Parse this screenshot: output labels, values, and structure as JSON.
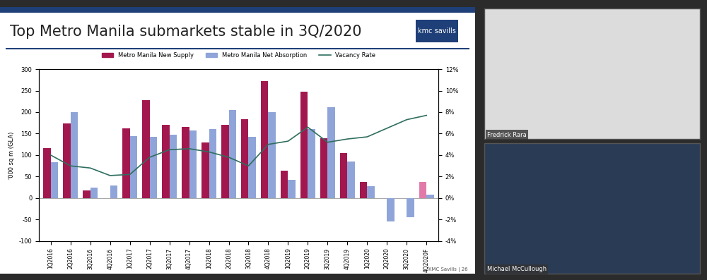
{
  "chart_data": {
    "type": "bar",
    "title": "Top Metro Manila submarkets stable in 3Q/2020",
    "y_label": "'000 sq m (GLA)",
    "categories": [
      "1Q2016",
      "2Q2016",
      "3Q2016",
      "4Q2016",
      "1Q2017",
      "2Q2017",
      "3Q2017",
      "4Q2017",
      "1Q2018",
      "2Q2018",
      "3Q2018",
      "4Q2018",
      "1Q2019",
      "2Q2019",
      "3Q2019",
      "4Q2019",
      "1Q2020",
      "2Q2020",
      "3Q2020",
      "4Q2020F"
    ],
    "series": [
      {
        "name": "Metro Manila New Supply",
        "type": "bar",
        "color": "#a3174f",
        "colors": [
          "#a3174f",
          "#a3174f",
          "#a3174f",
          "#a3174f",
          "#a3174f",
          "#a3174f",
          "#a3174f",
          "#a3174f",
          "#a3174f",
          "#a3174f",
          "#a3174f",
          "#a3174f",
          "#a3174f",
          "#a3174f",
          "#a3174f",
          "#a3174f",
          "#a3174f",
          "#a3174f",
          "#a3174f",
          "#e27aa9"
        ],
        "values": [
          116,
          174,
          18,
          0,
          162,
          228,
          170,
          165,
          130,
          170,
          183,
          272,
          63,
          248,
          140,
          105,
          37,
          0,
          0,
          37
        ]
      },
      {
        "name": "Metro Manila Net Absorption",
        "type": "bar",
        "color": "#8fa4d8",
        "values": [
          84,
          200,
          25,
          30,
          145,
          143,
          147,
          158,
          160,
          205,
          143,
          200,
          43,
          160,
          212,
          85,
          28,
          -55,
          -45,
          8
        ]
      },
      {
        "name": "Vacancy Rate",
        "type": "line",
        "axis": "y2",
        "color": "#2e6e5e",
        "values": [
          4.0,
          3.0,
          2.8,
          2.1,
          2.2,
          3.8,
          4.5,
          4.6,
          4.3,
          3.8,
          3.0,
          5.0,
          5.3,
          6.6,
          5.2,
          5.5,
          5.7,
          6.5,
          7.3,
          7.7
        ]
      }
    ],
    "ylim": [
      -100,
      300
    ],
    "yticks": [
      -100,
      -50,
      0,
      50,
      100,
      150,
      200,
      250,
      300
    ],
    "y2lim": [
      -4,
      12
    ],
    "y2ticks": [
      {
        "value": -4,
        "label": "-4%"
      },
      {
        "value": -2,
        "label": "-2%"
      },
      {
        "value": 0,
        "label": "0%"
      },
      {
        "value": 2,
        "label": "2%"
      },
      {
        "value": 4,
        "label": "4%"
      },
      {
        "value": 6,
        "label": "6%"
      },
      {
        "value": 8,
        "label": "8%"
      },
      {
        "value": 10,
        "label": "10%"
      },
      {
        "value": 12,
        "label": "12%"
      }
    ],
    "grid": false,
    "legend": "upper center"
  },
  "slide": {
    "logo": "kmc savills",
    "footer": "KMC Savills | 26"
  },
  "participants": [
    "Fredrick Rara",
    "Michael McCullough"
  ]
}
